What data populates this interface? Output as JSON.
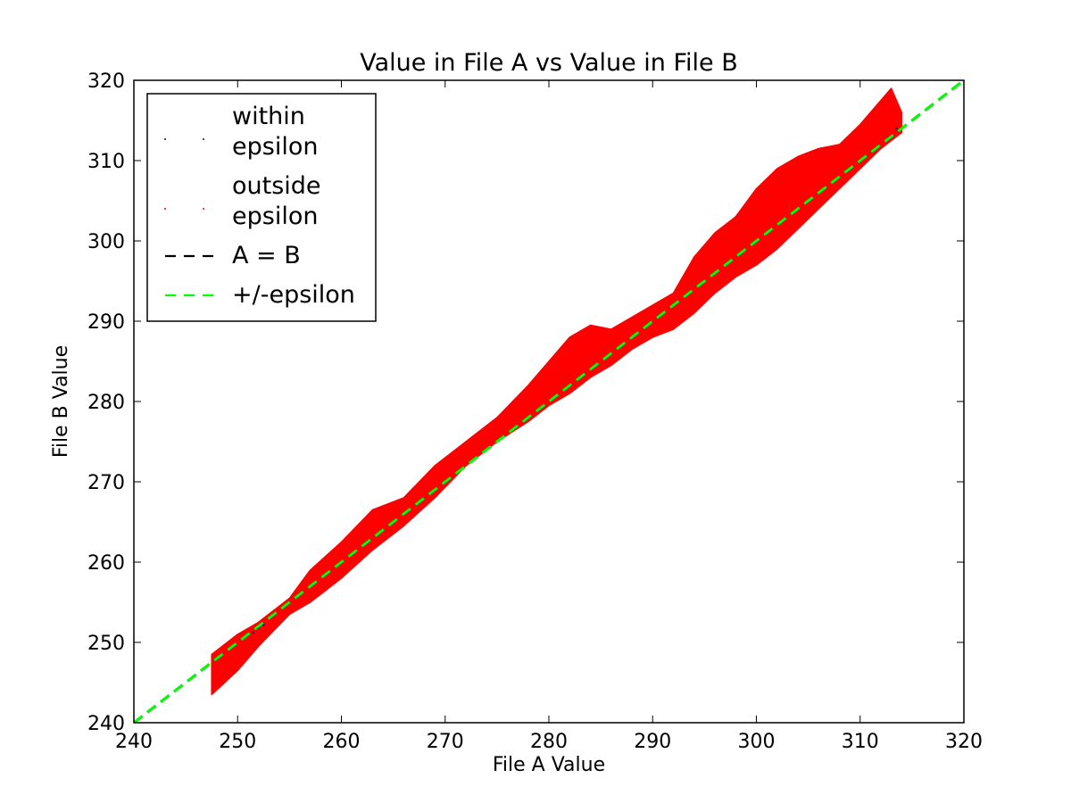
{
  "chart_data": {
    "type": "scatter",
    "title": "Value in File A vs Value in File B",
    "xlabel": "File A Value",
    "ylabel": "File B Value",
    "xlim": [
      240,
      320
    ],
    "ylim": [
      240,
      320
    ],
    "x_ticks": [
      "240",
      "250",
      "260",
      "270",
      "280",
      "290",
      "300",
      "310",
      "320"
    ],
    "y_ticks": [
      "240",
      "250",
      "260",
      "270",
      "280",
      "290",
      "300",
      "310",
      "320"
    ],
    "grid": false,
    "legend_position": "top-left",
    "legend": [
      {
        "label_lines": [
          "within",
          "epsilon"
        ],
        "marker": "point",
        "color": "#000080"
      },
      {
        "label_lines": [
          "outside",
          "epsilon"
        ],
        "marker": "point",
        "color": "#ff0000"
      },
      {
        "label_lines": [
          "A = B"
        ],
        "marker": "dashed-line",
        "color": "#000000"
      },
      {
        "label_lines": [
          "+/-epsilon"
        ],
        "marker": "dashed-line",
        "color": "#00ff00"
      }
    ],
    "series": [
      {
        "name": "outside epsilon",
        "color": "#ff0000",
        "kind": "dense-band",
        "band": [
          {
            "x": 247.5,
            "lo": 243.5,
            "hi": 248.5
          },
          {
            "x": 250,
            "lo": 246.5,
            "hi": 251
          },
          {
            "x": 252,
            "lo": 249.5,
            "hi": 252.5
          },
          {
            "x": 255,
            "lo": 253.5,
            "hi": 255.5
          },
          {
            "x": 257,
            "lo": 255,
            "hi": 259
          },
          {
            "x": 260,
            "lo": 258,
            "hi": 262.5
          },
          {
            "x": 263,
            "lo": 261.5,
            "hi": 266.5
          },
          {
            "x": 266,
            "lo": 264.5,
            "hi": 268
          },
          {
            "x": 269,
            "lo": 268,
            "hi": 272
          },
          {
            "x": 272,
            "lo": 272,
            "hi": 275
          },
          {
            "x": 275,
            "lo": 275,
            "hi": 278
          },
          {
            "x": 278,
            "lo": 277.5,
            "hi": 282
          },
          {
            "x": 280,
            "lo": 279.5,
            "hi": 285
          },
          {
            "x": 282,
            "lo": 281,
            "hi": 288
          },
          {
            "x": 284,
            "lo": 283,
            "hi": 289.5
          },
          {
            "x": 286,
            "lo": 284.5,
            "hi": 289
          },
          {
            "x": 288,
            "lo": 286.5,
            "hi": 290.5
          },
          {
            "x": 290,
            "lo": 288,
            "hi": 292
          },
          {
            "x": 292,
            "lo": 289,
            "hi": 293.5
          },
          {
            "x": 294,
            "lo": 291,
            "hi": 298
          },
          {
            "x": 296,
            "lo": 293.5,
            "hi": 301
          },
          {
            "x": 298,
            "lo": 295.5,
            "hi": 303
          },
          {
            "x": 300,
            "lo": 297,
            "hi": 306.5
          },
          {
            "x": 302,
            "lo": 299,
            "hi": 309
          },
          {
            "x": 304,
            "lo": 301.5,
            "hi": 310.5
          },
          {
            "x": 306,
            "lo": 304,
            "hi": 311.5
          },
          {
            "x": 308,
            "lo": 306.5,
            "hi": 312
          },
          {
            "x": 310,
            "lo": 309,
            "hi": 314.5
          },
          {
            "x": 312,
            "lo": 311.5,
            "hi": 317.5
          },
          {
            "x": 313,
            "lo": 312.5,
            "hi": 319
          },
          {
            "x": 314,
            "lo": 313.5,
            "hi": 316
          }
        ]
      },
      {
        "name": "within epsilon",
        "color": "#000080",
        "kind": "points",
        "points": [
          [
            251.5,
            251.2
          ],
          [
            252,
            251.8
          ],
          [
            313.5,
            314
          ],
          [
            252.5,
            252.2
          ]
        ]
      },
      {
        "name": "A = B",
        "color": "#000000",
        "kind": "dashed-line",
        "points": [
          [
            240,
            240
          ],
          [
            320,
            320
          ]
        ]
      },
      {
        "name": "+/-epsilon",
        "color": "#00ff00",
        "kind": "dashed-line",
        "points": [
          [
            240,
            240
          ],
          [
            320,
            320
          ]
        ]
      }
    ]
  }
}
